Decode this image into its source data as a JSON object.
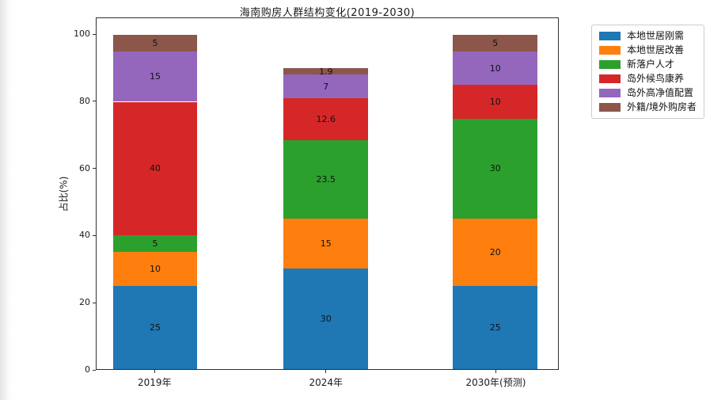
{
  "page": {
    "background": "#ffffff",
    "kind": "matplotlib-figure"
  },
  "chart_data": {
    "type": "bar",
    "stacked": true,
    "title": "海南购房人群结构变化(2019-2030)",
    "xlabel": "",
    "ylabel": "占比(%)",
    "categories": [
      "2019年",
      "2024年",
      "2030年(预测)"
    ],
    "series": [
      {
        "name": "本地世居刚需",
        "color": "#1f77b4",
        "values": [
          25,
          30,
          25
        ]
      },
      {
        "name": "本地世居改善",
        "color": "#ff7f0e",
        "values": [
          10,
          15,
          20
        ]
      },
      {
        "name": "新落户人才",
        "color": "#2ca02c",
        "values": [
          5,
          23.5,
          30
        ]
      },
      {
        "name": "岛外候鸟康养",
        "color": "#d62728",
        "values": [
          40,
          12.6,
          10
        ]
      },
      {
        "name": "岛外高净值配置",
        "color": "#9467bd",
        "values": [
          15,
          7,
          10
        ]
      },
      {
        "name": "外籍/境外购房者",
        "color": "#8c564b",
        "values": [
          5,
          1.9,
          5
        ]
      }
    ],
    "stack_totals": [
      100,
      90,
      100
    ],
    "ylim": [
      0,
      105
    ],
    "yticks": [
      0,
      20,
      40,
      60,
      80,
      100
    ],
    "grid": false,
    "bar_value_labels": true,
    "legend_position": "upper-right-outside",
    "spine_color": "#2f2f2f",
    "value_label_color": "#111111"
  }
}
